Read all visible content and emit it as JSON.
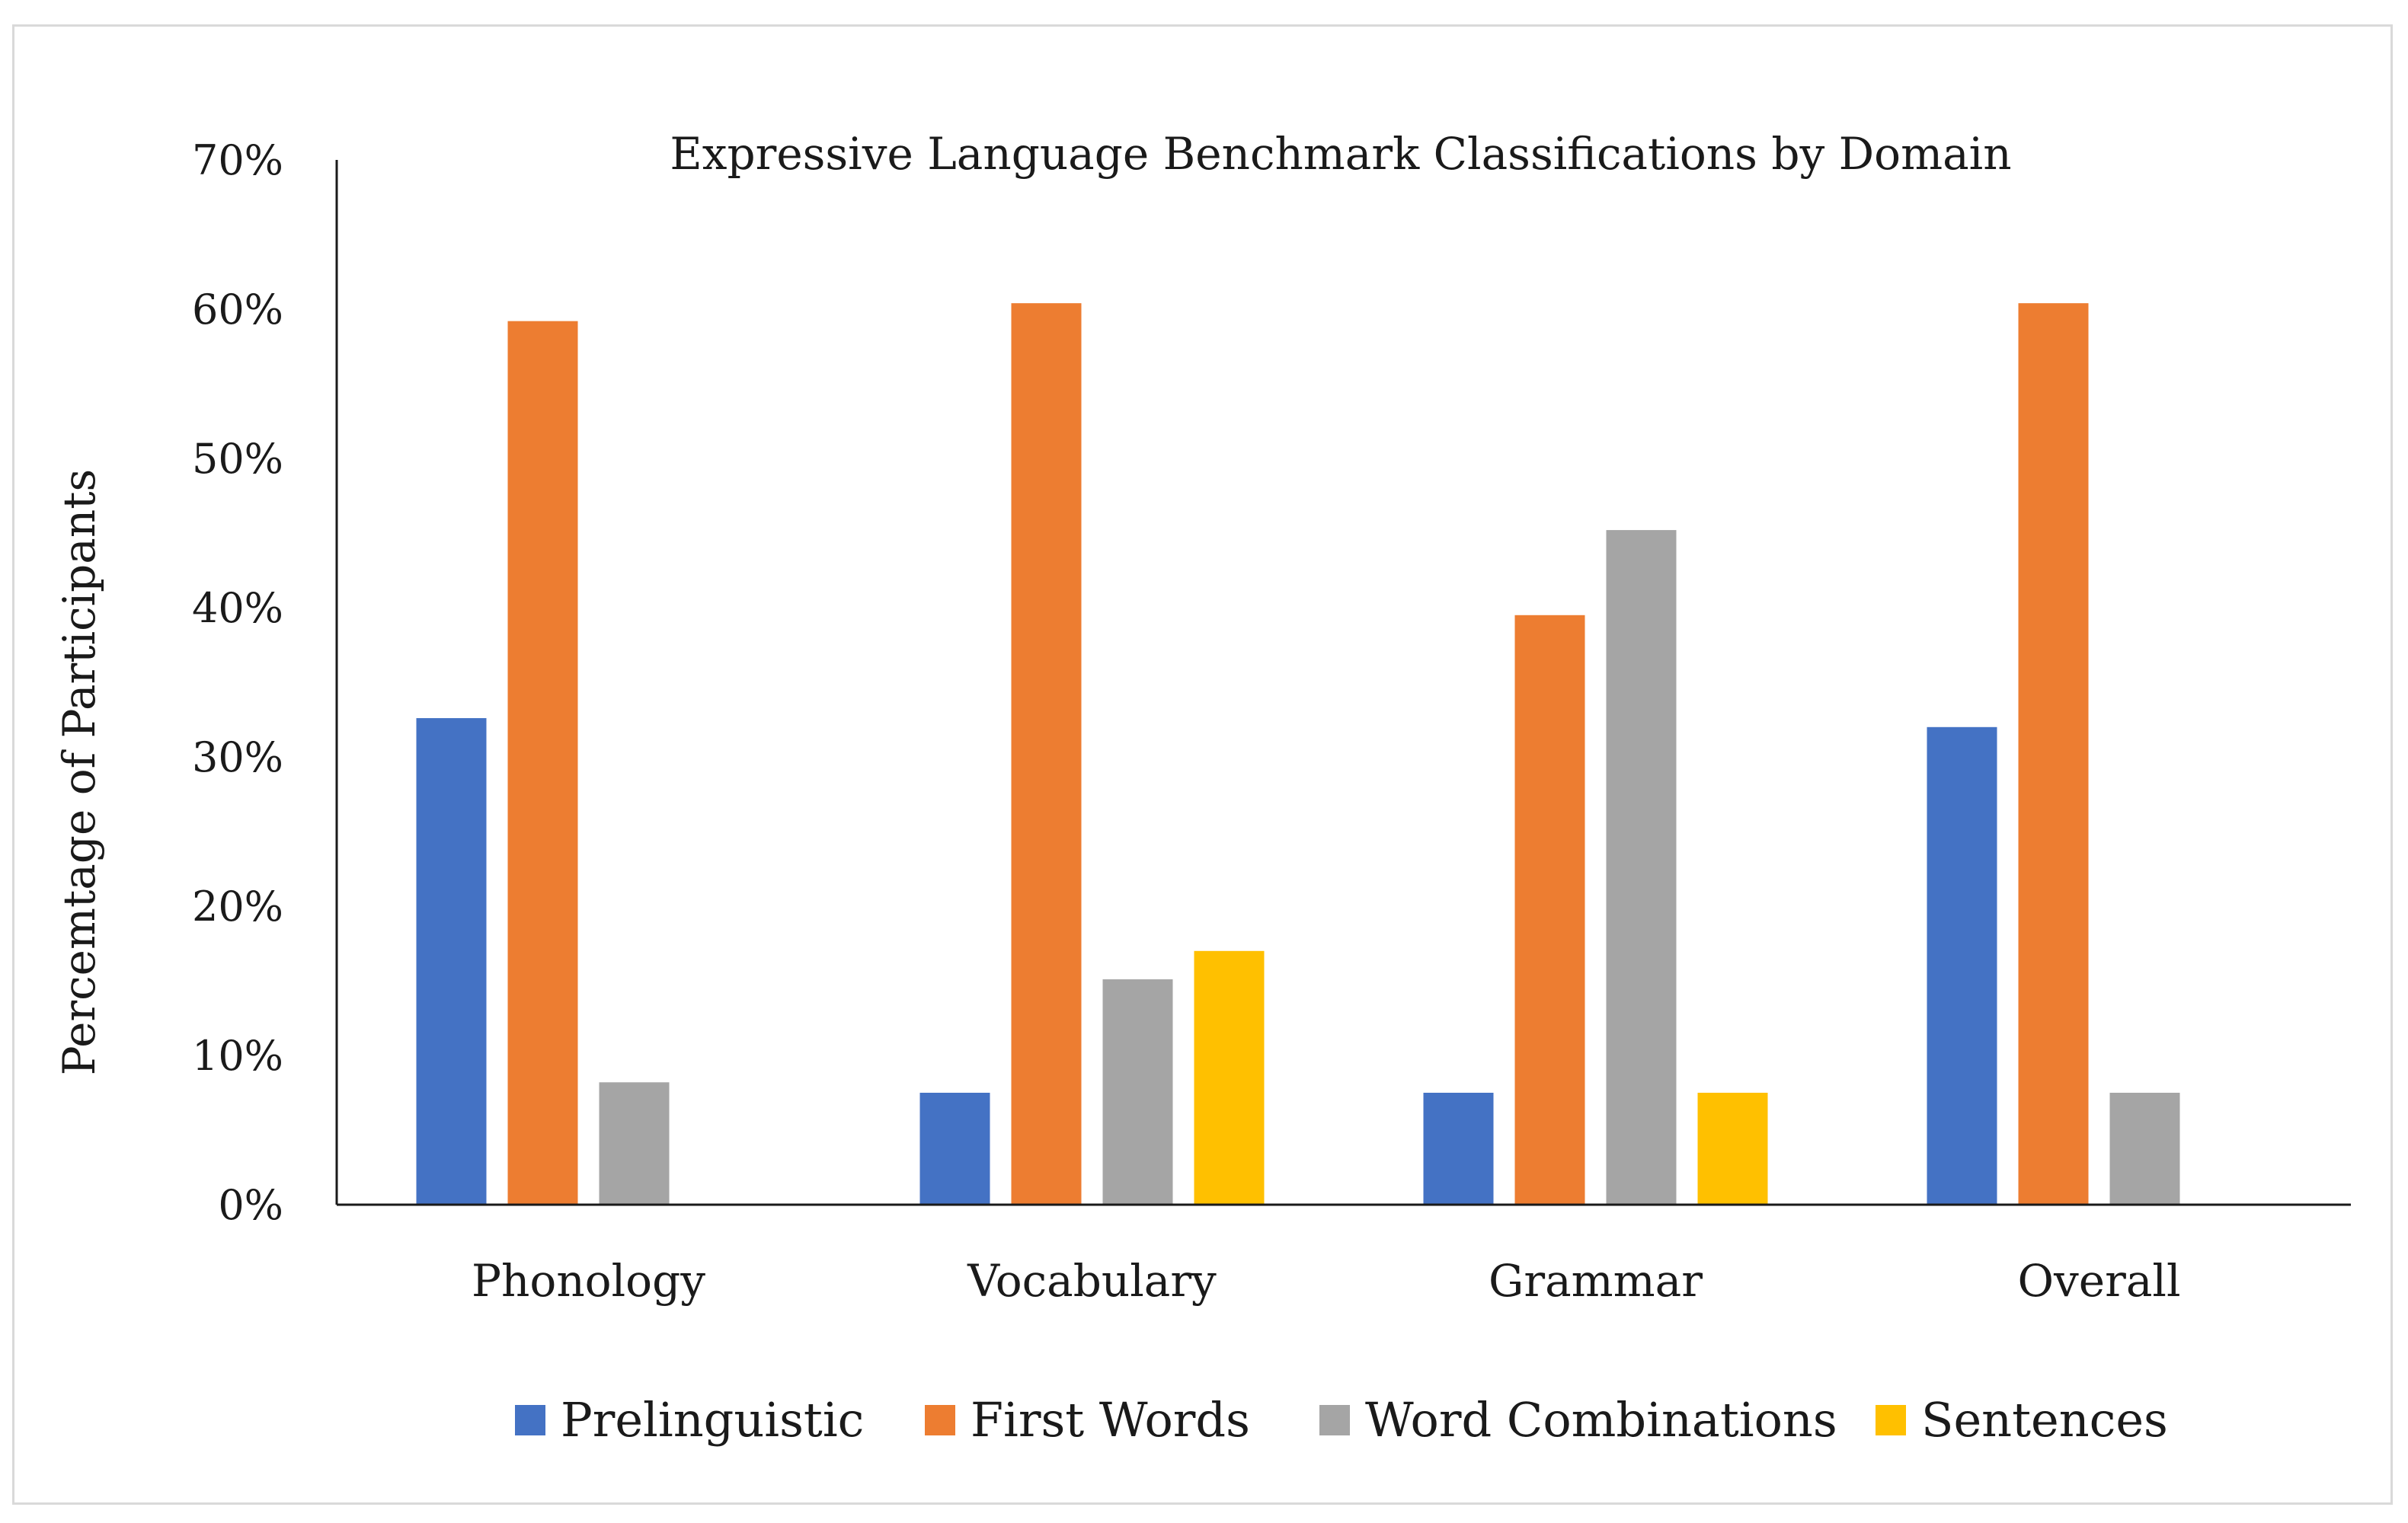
{
  "chart_data": {
    "type": "bar",
    "title": "Expressive Language Benchmark Classifications by Domain",
    "xlabel": "",
    "ylabel": "Percemtage of  Participants",
    "ylim": [
      0,
      70
    ],
    "y_ticks": [
      "0%",
      "10%",
      "20%",
      "30%",
      "40%",
      "50%",
      "60%",
      "70%"
    ],
    "y_tick_values": [
      0,
      10,
      20,
      30,
      40,
      50,
      60,
      70
    ],
    "grid": false,
    "legend_position": "bottom",
    "categories": [
      "Phonology",
      "Vocabulary",
      "Grammar",
      "Overall"
    ],
    "series": [
      {
        "name": "Prelinguistic",
        "color": "#4472c4",
        "values": [
          32.6,
          7.5,
          7.5,
          32.0
        ]
      },
      {
        "name": "First Words",
        "color": "#ed7d31",
        "values": [
          59.2,
          60.4,
          39.5,
          60.4
        ]
      },
      {
        "name": "Word Combinations",
        "color": "#a5a5a5",
        "values": [
          8.2,
          15.1,
          45.2,
          7.5
        ]
      },
      {
        "name": "Sentences",
        "color": "#ffc000",
        "values": [
          0,
          17.0,
          7.5,
          0
        ]
      }
    ]
  }
}
